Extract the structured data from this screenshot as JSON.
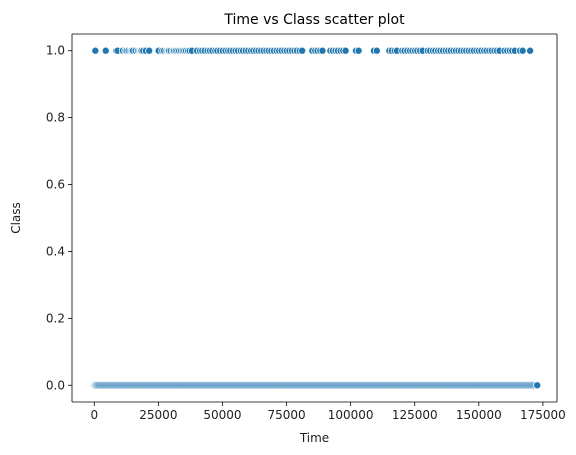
{
  "chart_data": {
    "type": "scatter",
    "title": "Time vs Class scatter plot",
    "xlabel": "Time",
    "ylabel": "Class",
    "xlim": [
      -8700,
      180500
    ],
    "ylim": [
      -0.05,
      1.05
    ],
    "xticks": [
      0,
      25000,
      50000,
      75000,
      100000,
      125000,
      150000,
      175000
    ],
    "xtick_labels": [
      "0",
      "25000",
      "50000",
      "75000",
      "100000",
      "125000",
      "150000",
      "175000"
    ],
    "yticks": [
      0.0,
      0.2,
      0.4,
      0.6,
      0.8,
      1.0
    ],
    "ytick_labels": [
      "0.0",
      "0.2",
      "0.4",
      "0.6",
      "0.8",
      "1.0"
    ],
    "grid": false,
    "legend": "none",
    "marker_color": "#1f77b4",
    "edge_color": "#ffffff",
    "series": [
      {
        "y": 1,
        "x": [
          406,
          4462,
          8528,
          9064,
          11092,
          12095,
          12597,
          13323,
          14073,
          14587,
          15098,
          16106,
          17010,
          17633,
          18091,
          18399,
          19085,
          20091,
          21422,
          25095,
          26499,
          27219,
          28143,
          28661,
          29126,
          29785,
          30618,
          31130,
          31753,
          32423,
          33101,
          33838,
          34485,
          35114,
          35796,
          36519,
          37192,
          38072,
          40086,
          41206,
          42115,
          43055,
          44166,
          45091,
          46025,
          47175,
          48008,
          49092,
          50130,
          51204,
          52219,
          53077,
          54089,
          55114,
          56063,
          57123,
          58024,
          59051,
          60081,
          61127,
          62050,
          63083,
          64054,
          65101,
          66070,
          67121,
          68033,
          69066,
          70070,
          71124,
          72100,
          73060,
          74132,
          75076,
          76098,
          77063,
          78104,
          79051,
          80137,
          81091,
          85044,
          86178,
          87074,
          88118,
          89011,
          92092,
          93034,
          94095,
          95027,
          96110,
          97119,
          98025,
          102061,
          103103,
          109093,
          110211,
          115099,
          116031,
          117183,
          118075,
          120127,
          121026,
          122094,
          123156,
          124123,
          125115,
          126033,
          127077,
          128091,
          130087,
          131029,
          132096,
          133031,
          134134,
          135017,
          136045,
          137101,
          138074,
          139026,
          140116,
          141082,
          142055,
          143044,
          144102,
          145087,
          146063,
          147068,
          148034,
          149108,
          150046,
          151007,
          152072,
          153020,
          154098,
          155037,
          156104,
          157084,
          158094,
          160035,
          161101,
          162084,
          163031,
          164062,
          166081,
          167102,
          170018
        ]
      },
      {
        "y": 0,
        "x_range": [
          0,
          172792
        ],
        "density": "dense"
      }
    ]
  }
}
